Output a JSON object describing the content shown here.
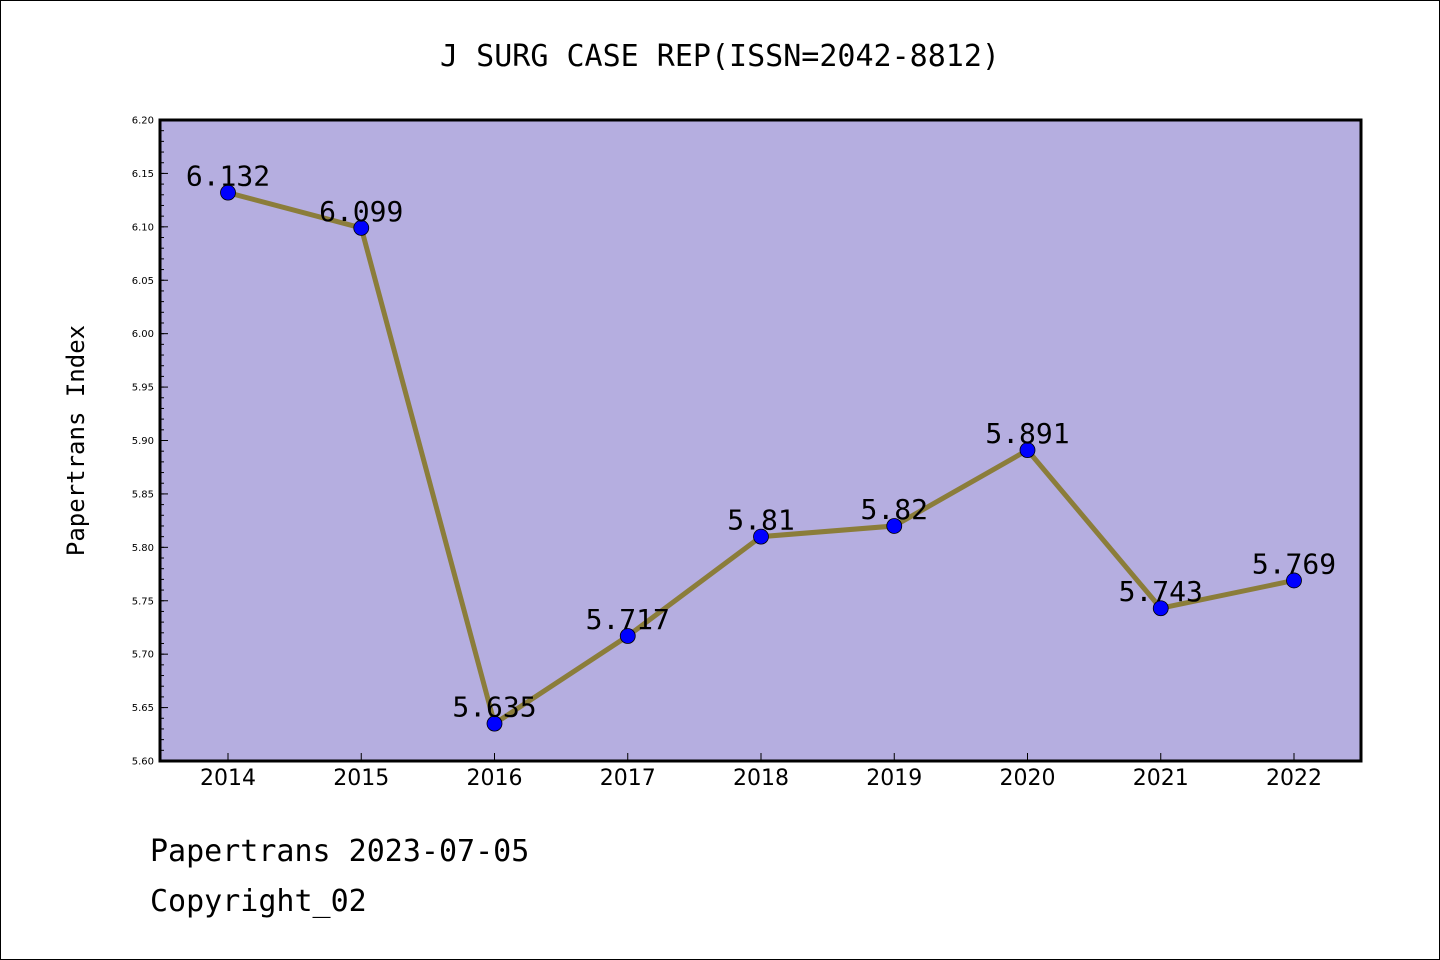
{
  "chart_data": {
    "type": "line",
    "title": "J SURG CASE REP(ISSN=2042-8812)",
    "xlabel": "",
    "ylabel": "Papertrans Index",
    "categories": [
      "2014",
      "2015",
      "2016",
      "2017",
      "2018",
      "2019",
      "2020",
      "2021",
      "2022"
    ],
    "series": [
      {
        "values": [
          6.132,
          6.099,
          5.635,
          5.717,
          5.81,
          5.82,
          5.891,
          5.743,
          5.769
        ]
      }
    ],
    "data_labels": [
      "6.132",
      "6.099",
      "5.635",
      "5.717",
      "5.81",
      "5.82",
      "5.891",
      "5.743",
      "5.769"
    ],
    "ylim": [
      5.6,
      6.2
    ],
    "yticks": [
      "5.60",
      "5.65",
      "5.70",
      "5.75",
      "5.80",
      "5.85",
      "5.90",
      "5.95",
      "6.00",
      "6.05",
      "6.10",
      "6.15",
      "6.20"
    ],
    "grid": false,
    "legend": "none",
    "colors": {
      "plot_background": "#b5aee0",
      "line": "#8b7d3a",
      "marker": "#0000ff"
    }
  },
  "footer": {
    "date_text": "Papertrans 2023-07-05",
    "copyright_text": "Copyright_02"
  }
}
